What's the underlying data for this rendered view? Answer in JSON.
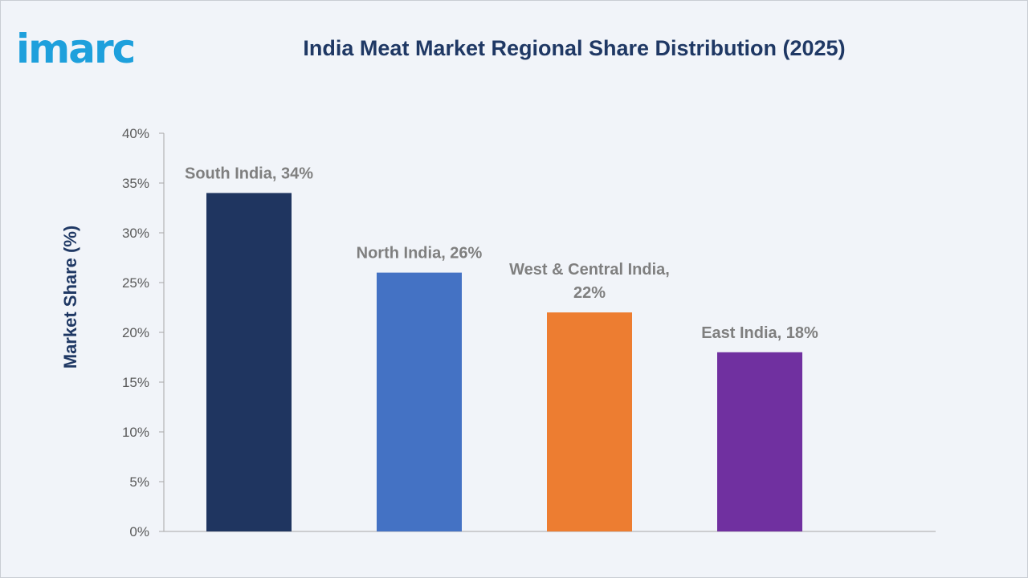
{
  "brand": {
    "logo_text": "imarc",
    "logo_color": "#1ea0dc"
  },
  "chart_data": {
    "type": "bar",
    "title": "India Meat Market Regional Share Distribution (2025)",
    "xlabel": "",
    "ylabel": "Market Share (%)",
    "ylim": [
      0,
      40
    ],
    "y_ticks": [
      0,
      5,
      10,
      15,
      20,
      25,
      30,
      35,
      40
    ],
    "y_tick_labels": [
      "0%",
      "5%",
      "10%",
      "15%",
      "20%",
      "25%",
      "30%",
      "35%",
      "40%"
    ],
    "grid": false,
    "categories": [
      "South India",
      "North India",
      "West & Central India",
      "East India"
    ],
    "values": [
      34,
      26,
      22,
      18
    ],
    "data_labels": [
      [
        "South India, 34%"
      ],
      [
        "North India, 26%"
      ],
      [
        "West & Central India,",
        "22%"
      ],
      [
        "East India, 18%"
      ]
    ],
    "colors": [
      "#1f3560",
      "#4472c4",
      "#ed7d31",
      "#7030a0"
    ]
  }
}
